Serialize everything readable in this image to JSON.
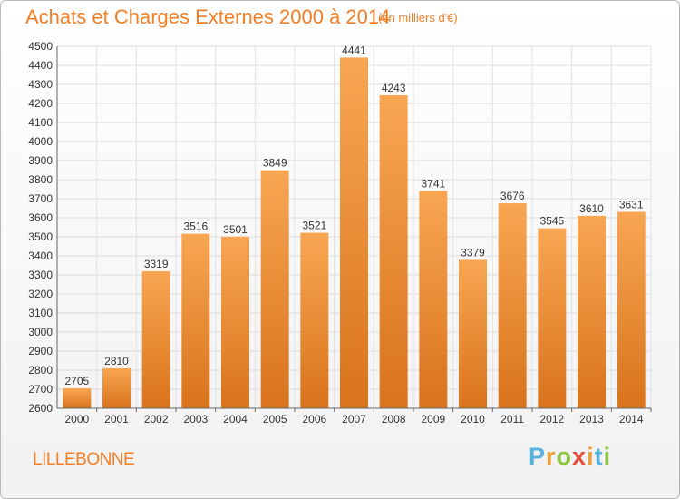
{
  "chart_data": {
    "type": "bar",
    "title": "Achats et Charges Externes 2000 à 2014",
    "subtitle": "(en milliers d'€)",
    "categories": [
      "2000",
      "2001",
      "2002",
      "2003",
      "2004",
      "2005",
      "2006",
      "2007",
      "2008",
      "2009",
      "2010",
      "2011",
      "2012",
      "2013",
      "2014"
    ],
    "values": [
      2705,
      2810,
      3319,
      3516,
      3501,
      3849,
      3521,
      4441,
      4243,
      3741,
      3379,
      3676,
      3545,
      3610,
      3631
    ],
    "ylim": [
      2600,
      4500
    ],
    "yticks": [
      2600,
      2700,
      2800,
      2900,
      3000,
      3100,
      3200,
      3300,
      3400,
      3500,
      3600,
      3700,
      3800,
      3900,
      4000,
      4100,
      4200,
      4300,
      4400,
      4500
    ],
    "grid": true,
    "bar_color": "#f5a04f"
  },
  "footer": {
    "city": "LILLEBONNE",
    "logo_letters": [
      "P",
      "r",
      "o",
      "x",
      "i",
      "t",
      "i"
    ],
    "logo_colors": [
      "#58b3e0",
      "#f0a030",
      "#8cc63f",
      "#e84a3c",
      "#f0a030",
      "#58b3e0",
      "#8cc63f"
    ]
  }
}
